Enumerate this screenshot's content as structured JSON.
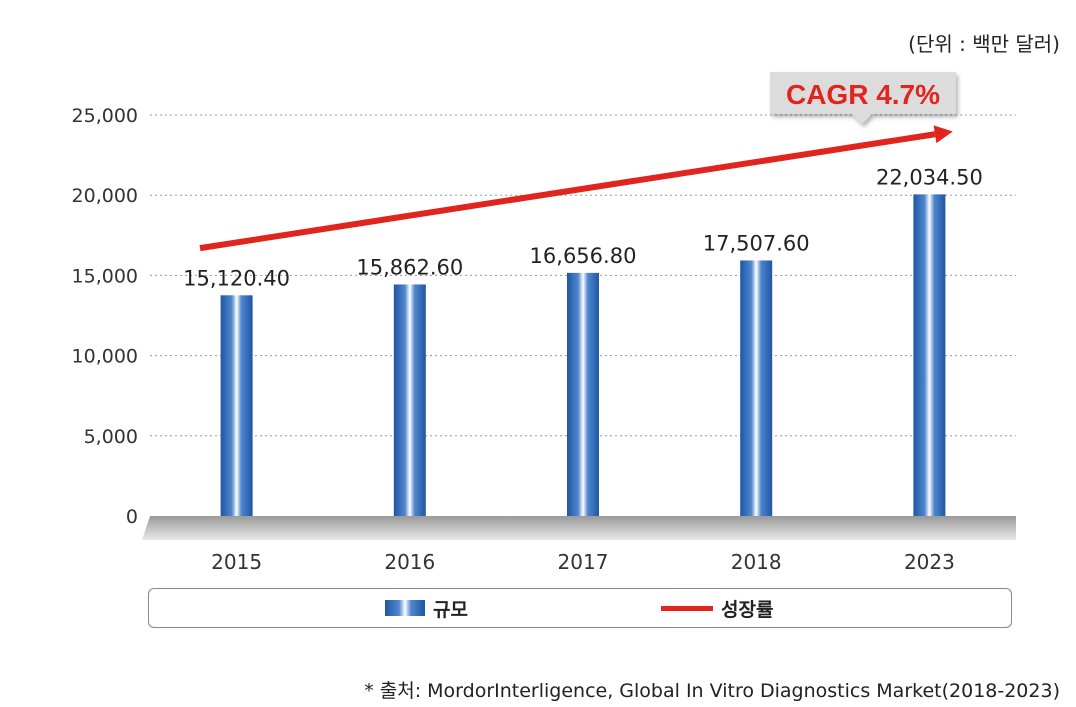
{
  "unit_label": "(단위 : 백만 달러)",
  "legend": {
    "bar_label": "규모",
    "line_label": "성장률"
  },
  "source_text": "* 출처: MordorInterligence, Global In Vitro Diagnostics Market(2018-2023)",
  "colors": {
    "bar": "#2f6bb8",
    "growth_line": "#e1241d",
    "callout_bg": "#dcdcdc",
    "callout_text": "#e1241d"
  },
  "chart_data": {
    "type": "bar",
    "categories": [
      "2015",
      "2016",
      "2017",
      "2018",
      "2023"
    ],
    "series": [
      {
        "name": "규모",
        "values": [
          15120.4,
          15862.6,
          16656.8,
          17507.6,
          22034.5
        ],
        "data_labels": [
          "15,120.40",
          "15,862.60",
          "16,656.80",
          "17,507.60",
          "22,034.50"
        ]
      }
    ],
    "trend_line": {
      "name": "성장률",
      "start": 16700,
      "end": 23800
    },
    "annotation": "CAGR 4.7%",
    "ylim": [
      0,
      25000
    ],
    "yticks": [
      0,
      5000,
      10000,
      15000,
      20000,
      25000
    ],
    "ytick_labels": [
      "0",
      "5,000",
      "10,000",
      "15,000",
      "20,000",
      "25,000"
    ],
    "grid": true,
    "legend_position": "bottom"
  }
}
